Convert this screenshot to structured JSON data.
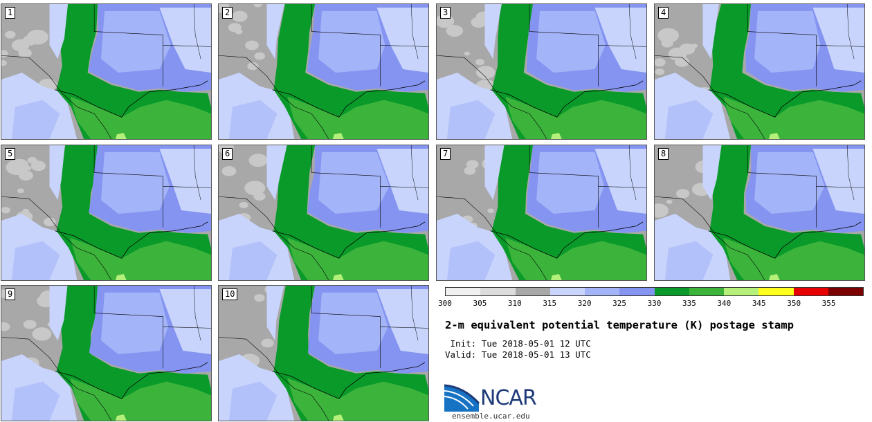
{
  "title": "2-m equivalent potential temperature (K) postage stamp",
  "init_label": " Init:",
  "init_value": "Tue 2018-05-01 12 UTC",
  "valid_label": "Valid:",
  "valid_value": "Tue 2018-05-01 13 UTC",
  "logo": {
    "text": "NCAR",
    "url": "ensemble.ucar.edu"
  },
  "members": [
    "1",
    "2",
    "3",
    "4",
    "5",
    "6",
    "7",
    "8",
    "9",
    "10"
  ],
  "colorbar": {
    "ticks": [
      "300",
      "305",
      "310",
      "315",
      "320",
      "325",
      "330",
      "335",
      "340",
      "345",
      "350",
      "355"
    ],
    "colors": [
      "#f0f0f0",
      "#dcdcdc",
      "#a8a8a8",
      "#c8d4fc",
      "#a4b4f8",
      "#8494f0",
      "#0a9a2a",
      "#3cb43c",
      "#b4f07a",
      "#ffff1e",
      "#e60000",
      "#7d0000"
    ]
  },
  "map_colors": {
    "light_gray": "#c8c8c8",
    "gray": "#a8a8a8",
    "pale_blue": "#c8d4fc",
    "light_blue": "#a4b4f8",
    "blue": "#8494f0",
    "dark_green": "#0a9a2a",
    "green": "#3cb43c",
    "light_green": "#b4f07a"
  }
}
